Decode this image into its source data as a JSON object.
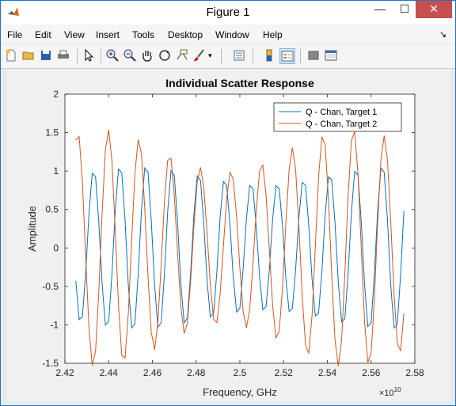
{
  "window": {
    "title": "Figure 1"
  },
  "menus": [
    "File",
    "Edit",
    "View",
    "Insert",
    "Tools",
    "Desktop",
    "Window",
    "Help"
  ],
  "toolbar": {
    "icons": [
      "new-figure-icon",
      "open-file-icon",
      "save-icon",
      "print-icon",
      "pointer-icon",
      "zoom-in-icon",
      "zoom-out-icon",
      "pan-icon",
      "rotate-icon",
      "data-cursor-icon",
      "brush-icon",
      "link-plot-icon",
      "colorbar-icon",
      "legend-icon",
      "hide-plot-tools-icon",
      "show-plot-tools-icon"
    ]
  },
  "colors": {
    "series1": "#0072bd",
    "series2": "#d95319",
    "close": "#c74f4f",
    "accent": "#1a73c9"
  },
  "chart_data": {
    "type": "line",
    "title": "Individual Scatter Response",
    "xlabel": "Frequency, GHz",
    "ylabel": "Amplitude",
    "x_exponent_label": "×10",
    "x_exponent_power": "10",
    "xlim": [
      2.42,
      2.58
    ],
    "ylim": [
      -1.5,
      2
    ],
    "xticks": [
      "2.42",
      "2.44",
      "2.46",
      "2.48",
      "2.5",
      "2.52",
      "2.54",
      "2.56",
      "2.58"
    ],
    "yticks": [
      "-1.5",
      "-1",
      "-0.5",
      "0",
      "0.5",
      "1",
      "1.5",
      "2"
    ],
    "xtick_values": [
      2.42,
      2.44,
      2.46,
      2.48,
      2.5,
      2.52,
      2.54,
      2.56,
      2.58
    ],
    "ytick_values": [
      -1.5,
      -1,
      -0.5,
      0,
      0.5,
      1,
      1.5,
      2
    ],
    "legend_position": "top-right",
    "x_sample_range": [
      2.425,
      2.575
    ],
    "samples": 101,
    "series": [
      {
        "name": "Q - Chan, Target 1",
        "color": "#0072bd",
        "amplitude_range": [
          0.85,
          1.1
        ],
        "cycles": 12.5,
        "phase": 3.6
      },
      {
        "name": "Q - Chan, Target 2",
        "color": "#d95319",
        "amplitude_range": [
          1.0,
          1.55
        ],
        "cycles": 10.7,
        "phase": 1.2
      }
    ]
  }
}
